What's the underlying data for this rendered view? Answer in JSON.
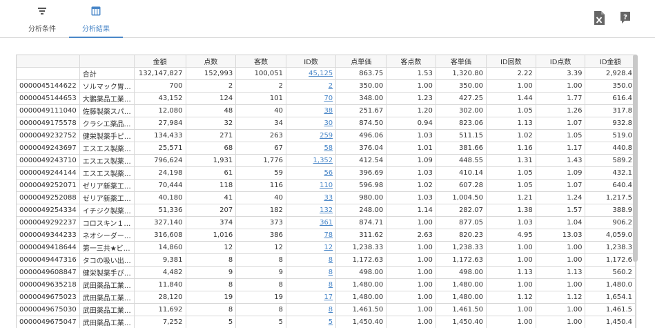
{
  "tabs": [
    {
      "label": "分析条件",
      "icon": "filter-icon",
      "active": false
    },
    {
      "label": "分析結果",
      "icon": "table-icon",
      "active": true
    }
  ],
  "toolbar": {
    "excel_icon": "excel-export-icon",
    "help_icon": "help-icon"
  },
  "colors": {
    "accent": "#4a87c8",
    "link": "#4a87c8",
    "icon": "#555555"
  },
  "table": {
    "columns": [
      "",
      "",
      "金額",
      "点数",
      "客数",
      "ID数",
      "点単価",
      "客点数",
      "客単価",
      "ID回数",
      "ID点数",
      "ID金額"
    ],
    "total_row": [
      "",
      "合計",
      "132,147,827",
      "152,993",
      "100,051",
      "45,125",
      "863.75",
      "1.53",
      "1,320.80",
      "2.22",
      "3.39",
      "2,928.4"
    ],
    "rows": [
      [
        "0000045144622",
        "ソルマック胃…",
        "700",
        "2",
        "2",
        "2",
        "350.00",
        "1.00",
        "350.00",
        "1.00",
        "1.00",
        "350.0"
      ],
      [
        "0000045144653",
        "大鵬薬品工業…",
        "43,152",
        "124",
        "101",
        "70",
        "348.00",
        "1.23",
        "427.25",
        "1.44",
        "1.77",
        "616.4"
      ],
      [
        "0000049111040",
        "佐藤製薬スパ…",
        "12,080",
        "48",
        "40",
        "38",
        "251.67",
        "1.20",
        "302.00",
        "1.05",
        "1.26",
        "317.8"
      ],
      [
        "0000049175578",
        "クラシエ薬品…",
        "27,984",
        "32",
        "34",
        "30",
        "874.50",
        "0.94",
        "823.06",
        "1.13",
        "1.07",
        "932.8"
      ],
      [
        "0000049232752",
        "健栄製薬手ピ…",
        "134,433",
        "271",
        "263",
        "259",
        "496.06",
        "1.03",
        "511.15",
        "1.02",
        "1.05",
        "519.0"
      ],
      [
        "0000049243697",
        "エスエス製薬…",
        "25,571",
        "68",
        "67",
        "58",
        "376.04",
        "1.01",
        "381.66",
        "1.16",
        "1.17",
        "440.8"
      ],
      [
        "0000049243710",
        "エスエス製薬…",
        "796,624",
        "1,931",
        "1,776",
        "1,352",
        "412.54",
        "1.09",
        "448.55",
        "1.31",
        "1.43",
        "589.2"
      ],
      [
        "0000049244144",
        "エスエス製薬…",
        "24,198",
        "61",
        "59",
        "56",
        "396.69",
        "1.03",
        "410.14",
        "1.05",
        "1.09",
        "432.1"
      ],
      [
        "0000049252071",
        "ゼリア新薬工…",
        "70,444",
        "118",
        "116",
        "110",
        "596.98",
        "1.02",
        "607.28",
        "1.05",
        "1.07",
        "640.4"
      ],
      [
        "0000049252088",
        "ゼリア新薬工…",
        "40,180",
        "41",
        "40",
        "33",
        "980.00",
        "1.03",
        "1,004.50",
        "1.21",
        "1.24",
        "1,217.5"
      ],
      [
        "0000049254334",
        "イチジク製薬…",
        "51,336",
        "207",
        "182",
        "132",
        "248.00",
        "1.14",
        "282.07",
        "1.38",
        "1.57",
        "388.9"
      ],
      [
        "0000049292237",
        "コロスキン１…",
        "327,140",
        "374",
        "373",
        "361",
        "874.71",
        "1.00",
        "877.05",
        "1.03",
        "1.04",
        "906.2"
      ],
      [
        "0000049344233",
        "ネオシーダー…",
        "316,608",
        "1,016",
        "386",
        "78",
        "311.62",
        "2.63",
        "820.23",
        "4.95",
        "13.03",
        "4,059.0"
      ],
      [
        "0000049418644",
        "第一三共★ビ…",
        "14,860",
        "12",
        "12",
        "12",
        "1,238.33",
        "1.00",
        "1,238.33",
        "1.00",
        "1.00",
        "1,238.3"
      ],
      [
        "0000049447316",
        "タコの吸い出…",
        "9,381",
        "8",
        "8",
        "8",
        "1,172.63",
        "1.00",
        "1,172.63",
        "1.00",
        "1.00",
        "1,172.6"
      ],
      [
        "0000049608847",
        "健栄製薬手ぴ…",
        "4,482",
        "9",
        "9",
        "8",
        "498.00",
        "1.00",
        "498.00",
        "1.13",
        "1.13",
        "560.2"
      ],
      [
        "0000049635218",
        "武田薬品工業…",
        "11,840",
        "8",
        "8",
        "8",
        "1,480.00",
        "1.00",
        "1,480.00",
        "1.00",
        "1.00",
        "1,480.0"
      ],
      [
        "0000049675023",
        "武田薬品工業…",
        "28,120",
        "19",
        "19",
        "17",
        "1,480.00",
        "1.00",
        "1,480.00",
        "1.12",
        "1.12",
        "1,654.1"
      ],
      [
        "0000049675030",
        "武田薬品工業…",
        "11,692",
        "8",
        "8",
        "8",
        "1,461.50",
        "1.00",
        "1,461.50",
        "1.00",
        "1.00",
        "1,461.5"
      ],
      [
        "0000049675047",
        "武田薬品工業…",
        "7,252",
        "5",
        "5",
        "5",
        "1,450.40",
        "1.00",
        "1,450.40",
        "1.00",
        "1.00",
        "1,450.4"
      ]
    ]
  }
}
